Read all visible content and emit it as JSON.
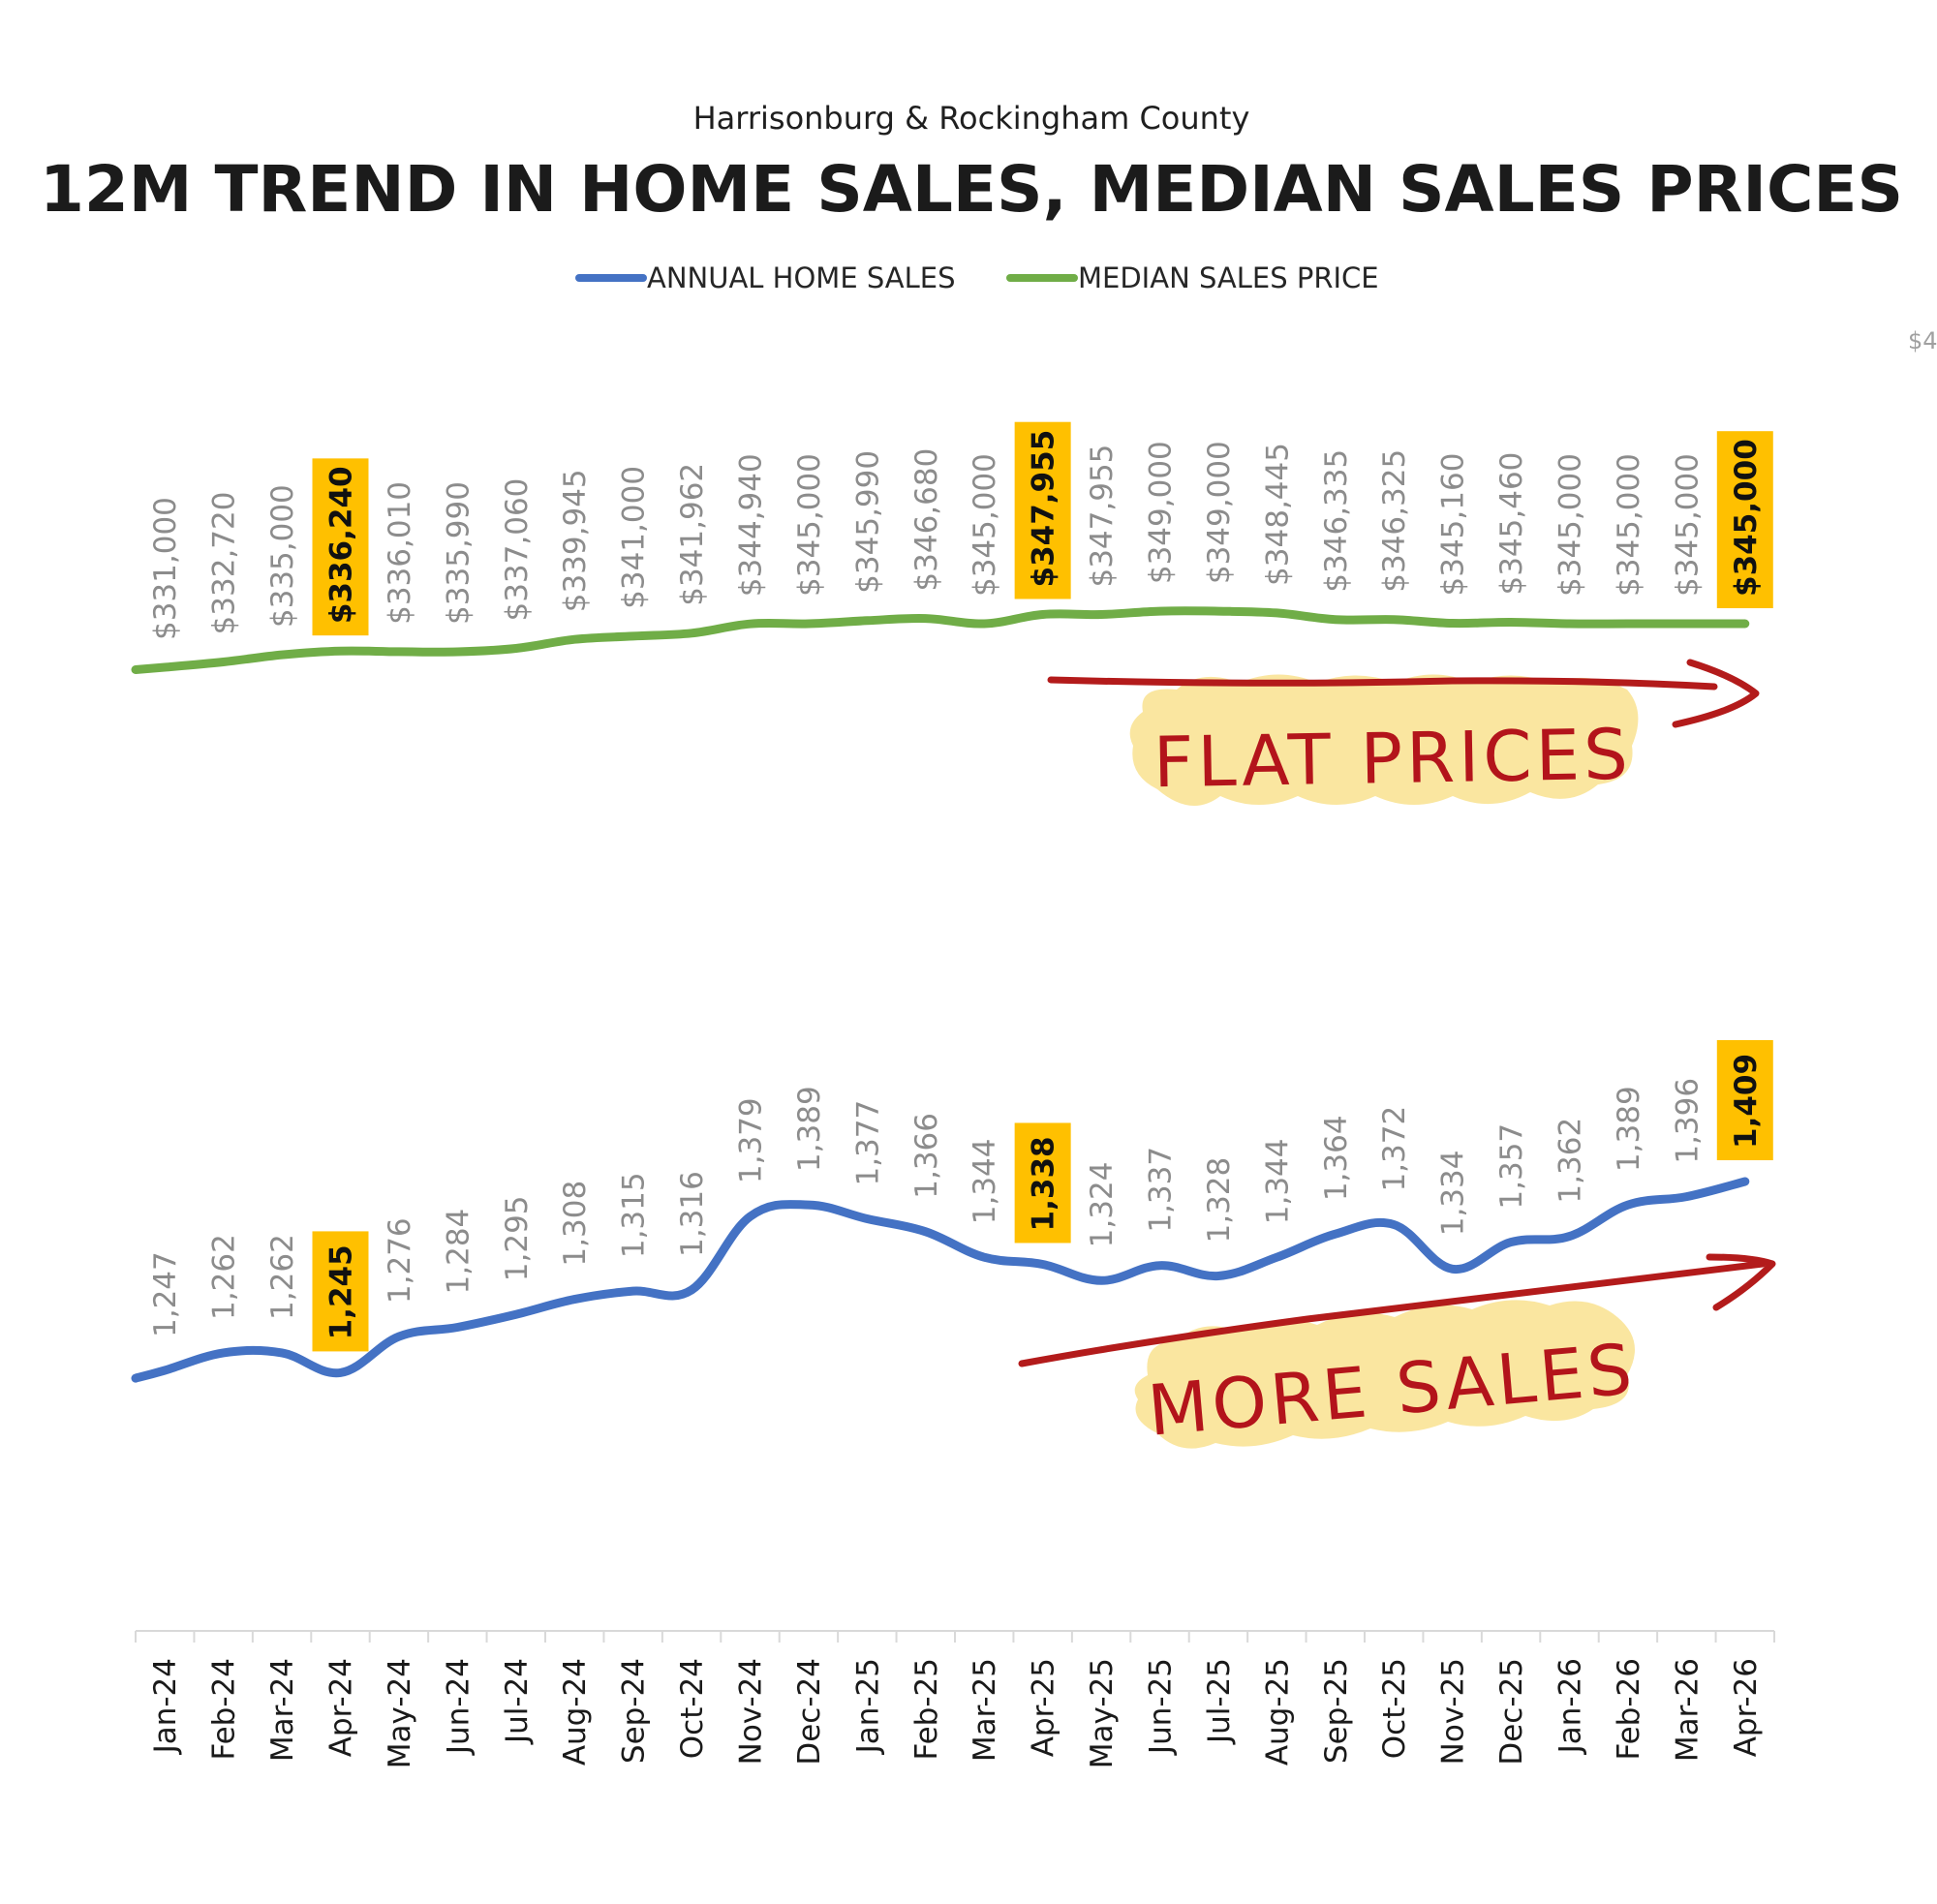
{
  "chart_data": {
    "type": "line",
    "subtitle": "Harrisonburg & Rockingham County",
    "title": "12M TREND IN HOME SALES, MEDIAN SALES PRICES",
    "legend": {
      "placement": "top-center"
    },
    "categories": [
      "Jan-24",
      "Feb-24",
      "Mar-24",
      "Apr-24",
      "May-24",
      "Jun-24",
      "Jul-24",
      "Aug-24",
      "Sep-24",
      "Oct-24",
      "Nov-24",
      "Dec-24",
      "Jan-25",
      "Feb-25",
      "Mar-25",
      "Apr-25",
      "May-25",
      "Jun-25",
      "Jul-25",
      "Aug-25",
      "Sep-25",
      "Oct-25",
      "Nov-25",
      "Dec-25",
      "Jan-26",
      "Feb-26",
      "Mar-26",
      "Apr-26"
    ],
    "series": [
      {
        "name": "ANNUAL HOME SALES",
        "color": "#4472C4",
        "values": [
          1247,
          1262,
          1262,
          1245,
          1276,
          1284,
          1295,
          1308,
          1315,
          1316,
          1379,
          1389,
          1377,
          1366,
          1344,
          1338,
          1324,
          1337,
          1328,
          1344,
          1364,
          1372,
          1334,
          1357,
          1362,
          1389,
          1396,
          1409
        ],
        "labels": [
          "1,247",
          "1,262",
          "1,262",
          "1,245",
          "1,276",
          "1,284",
          "1,295",
          "1,308",
          "1,315",
          "1,316",
          "1,379",
          "1,389",
          "1,377",
          "1,366",
          "1,344",
          "1,338",
          "1,324",
          "1,337",
          "1,328",
          "1,344",
          "1,364",
          "1,372",
          "1,334",
          "1,357",
          "1,362",
          "1,389",
          "1,396",
          "1,409"
        ],
        "highlighted": [
          "Apr-24",
          "Apr-25",
          "Apr-26"
        ]
      },
      {
        "name": "MEDIAN SALES PRICE",
        "color": "#70AD47",
        "values": [
          331000,
          332720,
          335000,
          336240,
          336010,
          335990,
          337060,
          339945,
          341000,
          341962,
          344940,
          345000,
          345990,
          346680,
          345000,
          347955,
          347955,
          349000,
          349000,
          348445,
          346335,
          346325,
          345160,
          345460,
          345000,
          345000,
          345000,
          345000
        ],
        "labels": [
          "$331,000",
          "$332,720",
          "$335,000",
          "$336,240",
          "$336,010",
          "$335,990",
          "$337,060",
          "$339,945",
          "$341,000",
          "$341,962",
          "$344,940",
          "$345,000",
          "$345,990",
          "$346,680",
          "$345,000",
          "$347,955",
          "$347,955",
          "$349,000",
          "$349,000",
          "$348,445",
          "$346,335",
          "$346,325",
          "$345,160",
          "$345,460",
          "$345,000",
          "$345,000",
          "$345,000",
          "$345,000"
        ],
        "highlighted": [
          "Apr-24",
          "Apr-25",
          "Apr-26"
        ]
      }
    ],
    "highlight_color": "#FFC000",
    "grid": false,
    "secondary_axis_clipped_label": "$4",
    "annotations": [
      {
        "text": "FLAT PRICES",
        "color": "#B3141B",
        "background": "#FAE6A0"
      },
      {
        "text": "MORE SALES",
        "color": "#B3141B",
        "background": "#FAE6A0"
      }
    ]
  }
}
